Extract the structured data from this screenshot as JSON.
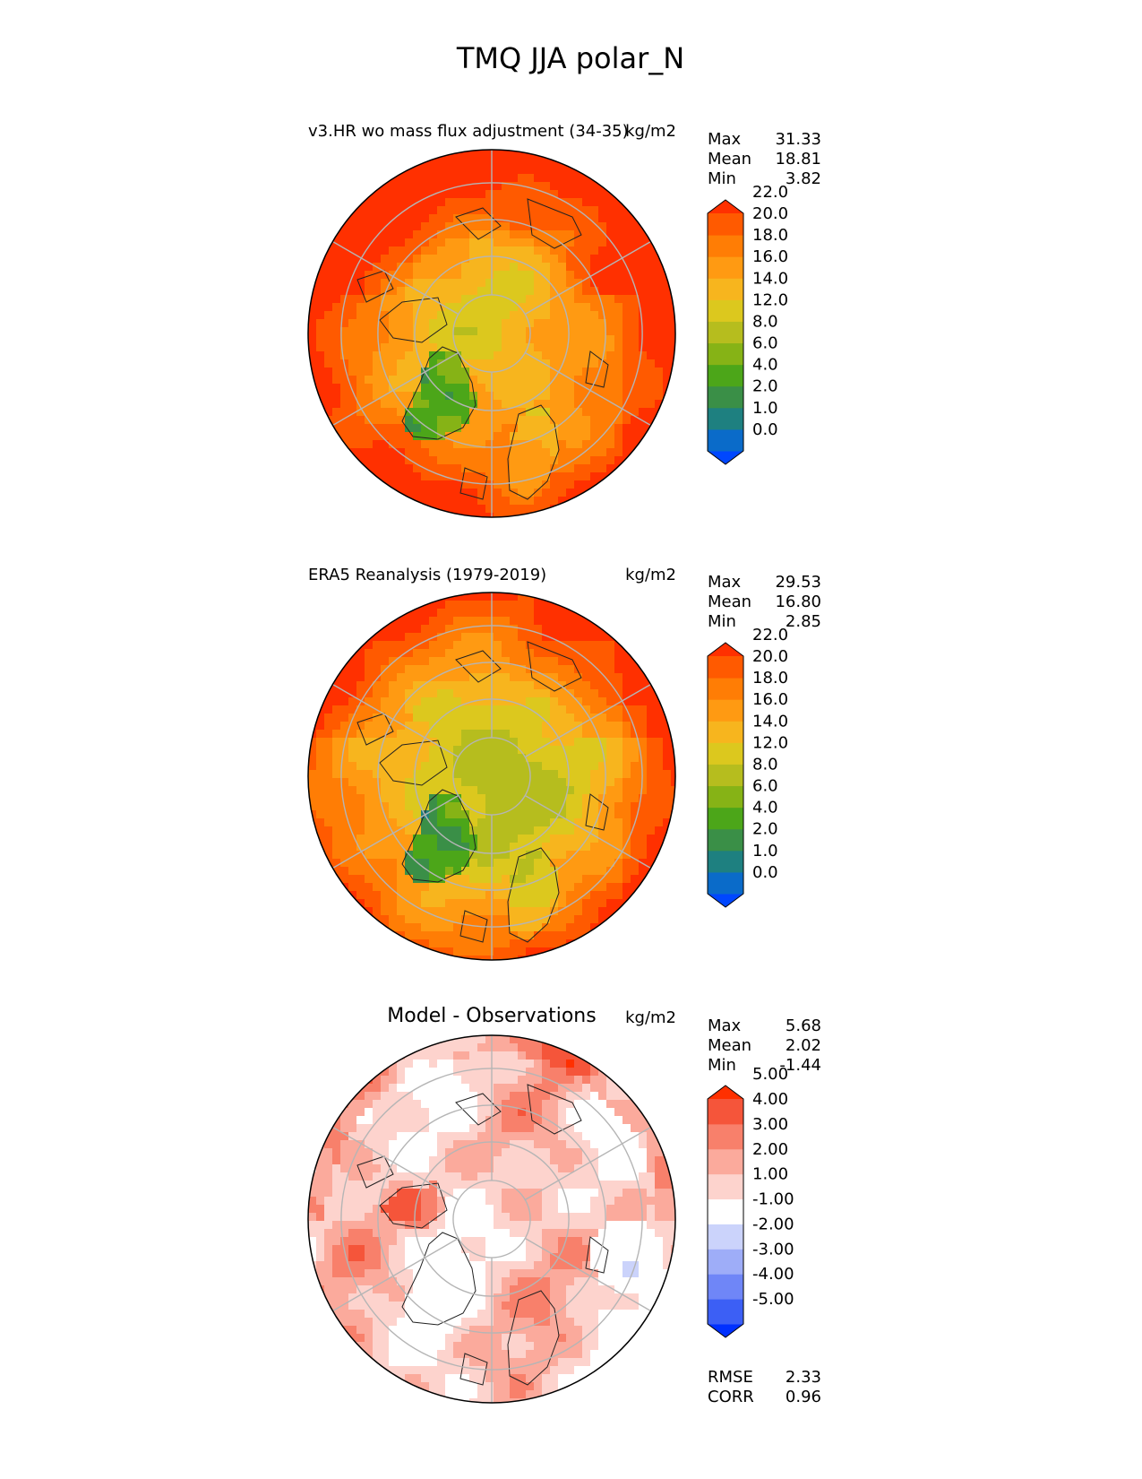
{
  "figure_title": "TMQ JJA polar_N",
  "chart_data": [
    {
      "type": "polar-contour-map",
      "subtitle": "v3.HR wo mass flux adjustment (34-35)",
      "units": "kg/m2",
      "stats": {
        "max_label": "Max",
        "max_value": "31.33",
        "mean_label": "Mean",
        "mean_value": "18.81",
        "min_label": "Min",
        "min_value": "3.82"
      },
      "colorbar": {
        "tick_labels": [
          "0.0",
          "1.0",
          "2.0",
          "4.0",
          "6.0",
          "8.0",
          "12.0",
          "14.0",
          "16.0",
          "18.0",
          "20.0",
          "22.0"
        ],
        "colors": [
          "#0047ff",
          "#0a6bc9",
          "#1e8080",
          "#3a8f47",
          "#4ca619",
          "#86b316",
          "#b6bd1e",
          "#dcc81e",
          "#f7b51e",
          "#ff9a12",
          "#ff7d05",
          "#ff5a00",
          "#ff3000"
        ]
      },
      "field": {
        "pole_value": 13,
        "lat40_value": 23,
        "greenland_min": 4.5
      }
    },
    {
      "type": "polar-contour-map",
      "subtitle": "ERA5 Reanalysis (1979-2019)",
      "units": "kg/m2",
      "stats": {
        "max_label": "Max",
        "max_value": "29.53",
        "mean_label": "Mean",
        "mean_value": "16.80",
        "min_label": "Min",
        "min_value": "2.85"
      },
      "colorbar": {
        "tick_labels": [
          "0.0",
          "1.0",
          "2.0",
          "4.0",
          "6.0",
          "8.0",
          "12.0",
          "14.0",
          "16.0",
          "18.0",
          "20.0",
          "22.0"
        ],
        "colors": [
          "#0047ff",
          "#0a6bc9",
          "#1e8080",
          "#3a8f47",
          "#4ca619",
          "#86b316",
          "#b6bd1e",
          "#dcc81e",
          "#f7b51e",
          "#ff9a12",
          "#ff7d05",
          "#ff5a00",
          "#ff3000"
        ]
      },
      "field": {
        "pole_value": 10,
        "lat40_value": 21,
        "greenland_min": 3.5
      }
    },
    {
      "type": "polar-contour-map",
      "subtitle": "Model - Observations",
      "units": "kg/m2",
      "stats": {
        "max_label": "Max",
        "max_value": "5.68",
        "mean_label": "Mean",
        "mean_value": "2.02",
        "min_label": "Min",
        "min_value": "-1.44"
      },
      "colorbar": {
        "tick_labels": [
          "-5.00",
          "-4.00",
          "-3.00",
          "-2.00",
          "-1.00",
          "1.00",
          "2.00",
          "3.00",
          "4.00",
          "5.00"
        ],
        "colors": [
          "#0030ff",
          "#3c5ff5",
          "#6f86f7",
          "#9eadf8",
          "#cbd3fb",
          "#ffffff",
          "#fdd3cd",
          "#fbaa9c",
          "#f8806b",
          "#f5553a",
          "#ff3000"
        ]
      },
      "metrics": {
        "rmse_label": "RMSE",
        "rmse_value": "2.33",
        "corr_label": "CORR",
        "corr_value": "0.96"
      }
    }
  ]
}
